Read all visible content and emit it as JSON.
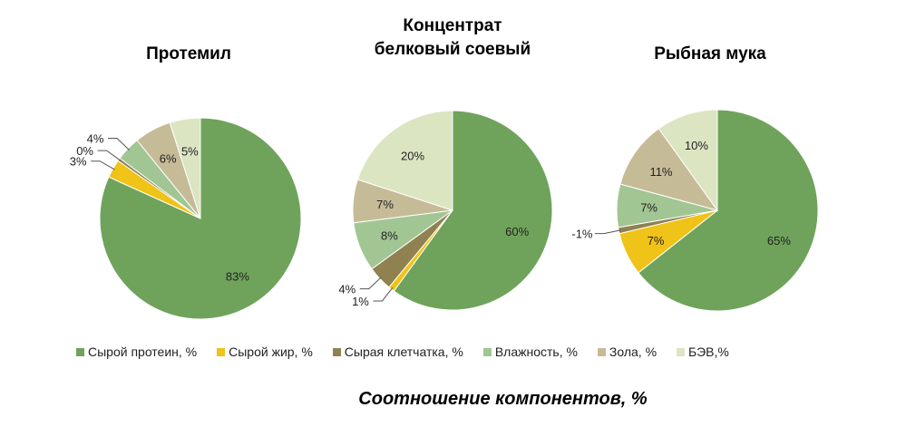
{
  "chart_data": {
    "type": "pie",
    "title": "Соотношение компонентов, %",
    "legend_position": "bottom",
    "categories": [
      "Сырой протеин, %",
      "Сырой жир, %",
      "Сырая клетчатка, %",
      "Влажность, %",
      "Зола, %",
      "БЭВ,%"
    ],
    "colors": [
      "#6fa35b",
      "#efc317",
      "#8f8150",
      "#a2c693",
      "#c6bb97",
      "#dbe5c2"
    ],
    "pies": [
      {
        "title": "Протемил",
        "values": [
          83,
          3,
          0,
          4,
          6,
          5
        ]
      },
      {
        "title": "Концентрат белковый соевый",
        "values": [
          60,
          1,
          4,
          8,
          7,
          20
        ]
      },
      {
        "title": "Рыбная мука",
        "values": [
          65,
          7,
          -1,
          7,
          11,
          10
        ]
      }
    ]
  }
}
